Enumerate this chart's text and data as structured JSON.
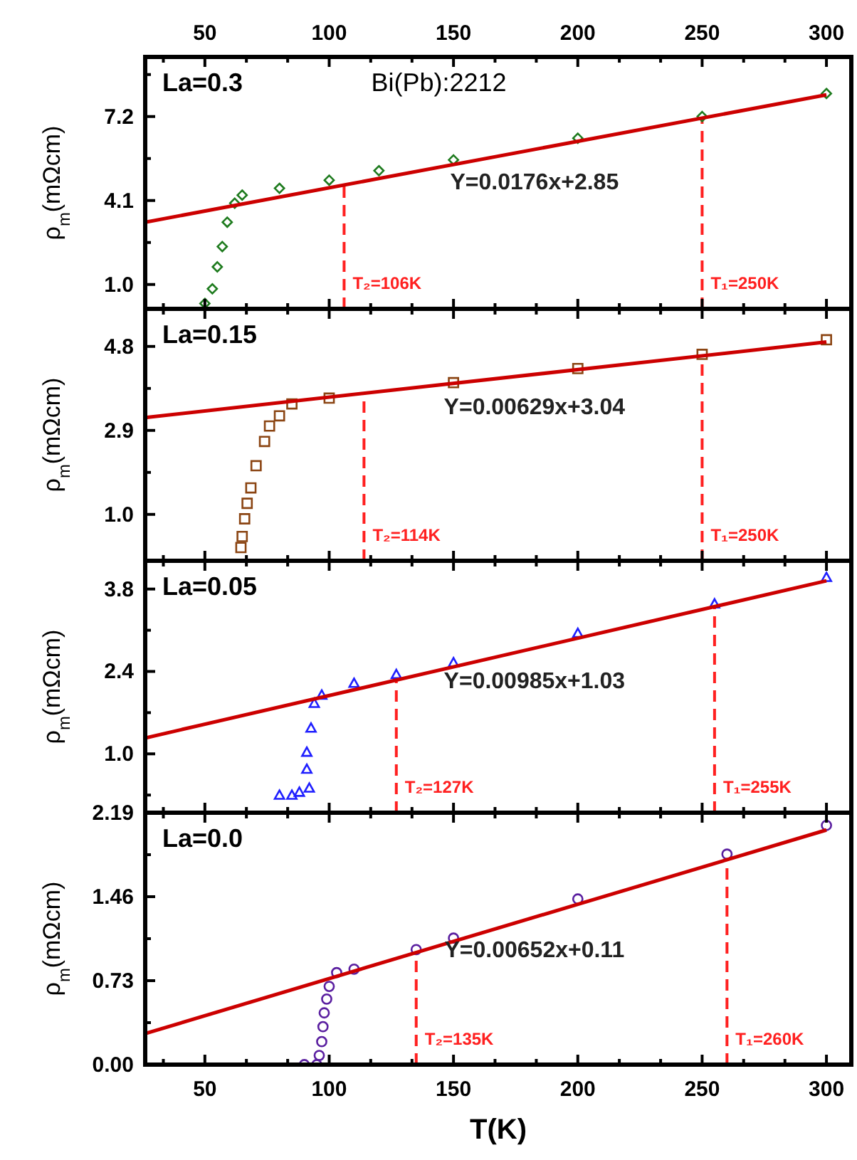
{
  "chart_data": [
    {
      "type": "scatter",
      "title": "La=0.3",
      "ylabel": "ρ$_{m}$(mΩcm)",
      "annotations": [
        "Bi(Pb):2212"
      ],
      "tick_labels": "y",
      "xlim": [
        26,
        310
      ],
      "xticks": [
        {
          "value": 33.3,
          "label": null
        },
        50,
        {
          "value": 66.7,
          "label": null
        },
        {
          "value": 83.3,
          "label": null
        },
        100,
        {
          "value": 116.7,
          "label": null
        },
        {
          "value": 133.3,
          "label": null
        },
        150,
        {
          "value": 166.7,
          "label": null
        },
        {
          "value": 183.3,
          "label": null
        },
        200,
        {
          "value": 216.7,
          "label": null
        },
        {
          "value": 233.3,
          "label": null
        },
        250,
        {
          "value": 266.7,
          "label": null
        },
        {
          "value": 283.3,
          "label": null
        },
        300
      ],
      "x2lim": [
        26,
        310
      ],
      "x2ticks": [
        {
          "value": 33.3,
          "label": null
        },
        50,
        {
          "value": 66.7,
          "label": null
        },
        {
          "value": 83.3,
          "label": null
        },
        100,
        {
          "value": 116.7,
          "label": null
        },
        {
          "value": 133.3,
          "label": null
        },
        150,
        {
          "value": 166.7,
          "label": null
        },
        {
          "value": 183.3,
          "label": null
        },
        200,
        {
          "value": 216.7,
          "label": null
        },
        {
          "value": 233.3,
          "label": null
        },
        250,
        {
          "value": 266.7,
          "label": null
        },
        {
          "value": 283.3,
          "label": null
        },
        300
      ],
      "ylim": [
        0.1,
        9.4
      ],
      "yticks": [
        {
          "value": 1,
          "label": "1.0"
        },
        {
          "value": 2.55,
          "label": null
        },
        4.1,
        {
          "value": 5.65,
          "label": null
        },
        7.2,
        {
          "value": 8.75,
          "label": null
        }
      ],
      "series": [
        {
          "marker": "diamond",
          "color": "#1e7b1e",
          "x": [
            50,
            53,
            55,
            57,
            59,
            62,
            65,
            80,
            100,
            120,
            150,
            200,
            250,
            300
          ],
          "values": [
            0.3,
            0.84,
            1.65,
            2.4,
            3.3,
            4.0,
            4.3,
            4.55,
            4.85,
            5.2,
            5.6,
            6.4,
            7.2,
            8.05
          ]
        },
        {
          "type": "line",
          "name": "Y=0.0176x+2.85",
          "color": "#cc0000",
          "x": [
            26,
            300
          ],
          "values": [
            3.3,
            8.0
          ]
        }
      ],
      "ref_lines": [
        {
          "axis": "x",
          "value": 106,
          "label": "T₂=106K",
          "color": "#ff2020",
          "line_style": "dashed"
        },
        {
          "axis": "x",
          "value": 250,
          "label": "T₁=250K",
          "color": "#ff2020",
          "line_style": "dashed"
        }
      ]
    },
    {
      "type": "scatter",
      "title": "La=0.15",
      "ylabel": "ρ$_{m}$(mΩcm)",
      "tick_labels": "y",
      "xlim": [
        26,
        310
      ],
      "xticks": [
        {
          "value": 33.3,
          "label": null
        },
        50,
        {
          "value": 66.7,
          "label": null
        },
        {
          "value": 83.3,
          "label": null
        },
        100,
        {
          "value": 116.7,
          "label": null
        },
        {
          "value": 133.3,
          "label": null
        },
        150,
        {
          "value": 166.7,
          "label": null
        },
        {
          "value": 183.3,
          "label": null
        },
        200,
        {
          "value": 216.7,
          "label": null
        },
        {
          "value": 233.3,
          "label": null
        },
        250,
        {
          "value": 266.7,
          "label": null
        },
        {
          "value": 283.3,
          "label": null
        },
        300
      ],
      "ylim": [
        -0.05,
        5.65
      ],
      "yticks": [
        {
          "value": 1,
          "label": "1.0"
        },
        {
          "value": 1.95,
          "label": null
        },
        2.9,
        {
          "value": 3.85,
          "label": null
        },
        4.8
      ],
      "series": [
        {
          "marker": "square",
          "color": "#8b4513",
          "x": [
            64.5,
            65,
            66,
            67,
            68.5,
            70.6,
            74,
            76,
            80,
            85,
            100,
            150,
            200,
            250,
            300
          ],
          "values": [
            0.25,
            0.5,
            0.9,
            1.25,
            1.6,
            2.1,
            2.65,
            3.0,
            3.23,
            3.5,
            3.63,
            3.98,
            4.3,
            4.62,
            4.95
          ]
        },
        {
          "type": "line",
          "name": "Y=0.00629x+3.04",
          "color": "#cc0000",
          "x": [
            26,
            300
          ],
          "values": [
            3.19,
            4.9
          ]
        }
      ],
      "ref_lines": [
        {
          "axis": "x",
          "value": 114,
          "label": "T₂=114K",
          "color": "#ff2020",
          "line_style": "dashed"
        },
        {
          "axis": "x",
          "value": 250,
          "label": "T₁=250K",
          "color": "#ff2020",
          "line_style": "dashed"
        }
      ]
    },
    {
      "type": "scatter",
      "title": "La=0.05",
      "ylabel": "ρ$_{m}$(mΩcm)",
      "tick_labels": "y",
      "xlim": [
        26,
        310
      ],
      "xticks": [
        {
          "value": 33.3,
          "label": null
        },
        50,
        {
          "value": 66.7,
          "label": null
        },
        {
          "value": 83.3,
          "label": null
        },
        100,
        {
          "value": 116.7,
          "label": null
        },
        {
          "value": 133.3,
          "label": null
        },
        150,
        {
          "value": 166.7,
          "label": null
        },
        {
          "value": 183.3,
          "label": null
        },
        200,
        {
          "value": 216.7,
          "label": null
        },
        {
          "value": 233.3,
          "label": null
        },
        250,
        {
          "value": 266.7,
          "label": null
        },
        {
          "value": 283.3,
          "label": null
        },
        300
      ],
      "ylim": [
        0,
        4.28
      ],
      "yticks": [
        {
          "value": 0.3,
          "label": null
        },
        {
          "value": 1,
          "label": "1.0"
        },
        {
          "value": 1.7,
          "label": null
        },
        2.4,
        {
          "value": 3.1,
          "label": null
        },
        3.8
      ],
      "series": [
        {
          "marker": "triangle",
          "color": "#1f1fff",
          "x": [
            80,
            85,
            88,
            92,
            91,
            91,
            92.7,
            94,
            97,
            110,
            127,
            150,
            200,
            255,
            300
          ],
          "values": [
            0.3,
            0.3,
            0.35,
            0.42,
            0.74,
            1.03,
            1.44,
            1.86,
            2.0,
            2.2,
            2.35,
            2.55,
            3.05,
            3.55,
            4.0
          ]
        },
        {
          "type": "line",
          "name": "Y=0.00985x+1.03",
          "color": "#cc0000",
          "x": [
            26,
            300
          ],
          "values": [
            1.27,
            3.94
          ]
        }
      ],
      "ref_lines": [
        {
          "axis": "x",
          "value": 127,
          "label": "T₂=127K",
          "color": "#ff2020",
          "line_style": "dashed"
        },
        {
          "axis": "x",
          "value": 255,
          "label": "T₁=255K",
          "color": "#ff2020",
          "line_style": "dashed"
        }
      ]
    },
    {
      "type": "scatter",
      "title": "La=0.0",
      "ylabel": "ρ$_{m}$(mΩcm)",
      "xlabel": "T(K)",
      "xlim": [
        26,
        310
      ],
      "xticks": [
        {
          "value": 33.3,
          "label": null
        },
        50,
        {
          "value": 66.7,
          "label": null
        },
        {
          "value": 83.3,
          "label": null
        },
        100,
        {
          "value": 116.7,
          "label": null
        },
        {
          "value": 133.3,
          "label": null
        },
        150,
        {
          "value": 166.7,
          "label": null
        },
        {
          "value": 183.3,
          "label": null
        },
        200,
        {
          "value": 216.7,
          "label": null
        },
        {
          "value": 233.3,
          "label": null
        },
        250,
        {
          "value": 266.7,
          "label": null
        },
        {
          "value": 283.3,
          "label": null
        },
        300
      ],
      "ylim": [
        0,
        2.19
      ],
      "yticks": [
        {
          "value": 0,
          "label": "0.00"
        },
        {
          "value": 0.365,
          "label": null
        },
        0.73,
        {
          "value": 1.095,
          "label": null
        },
        1.46,
        {
          "value": 1.825,
          "label": null
        },
        2.19
      ],
      "series": [
        {
          "marker": "circle",
          "color": "#5a1fa0",
          "x": [
            90,
            95,
            96,
            97,
            97.5,
            98,
            99,
            100,
            103,
            110,
            135,
            150,
            200,
            260,
            300
          ],
          "values": [
            0.0,
            0.0,
            0.08,
            0.2,
            0.33,
            0.45,
            0.57,
            0.68,
            0.8,
            0.83,
            1.0,
            1.1,
            1.44,
            1.83,
            2.08
          ]
        },
        {
          "type": "line",
          "name": "Y=0.00652x+0.11",
          "color": "#cc0000",
          "x": [
            26,
            300
          ],
          "values": [
            0.27,
            2.04
          ]
        }
      ],
      "ref_lines": [
        {
          "axis": "x",
          "value": 135,
          "label": "T₂=135K",
          "color": "#ff2020",
          "line_style": "dashed"
        },
        {
          "axis": "x",
          "value": 260,
          "label": "T₁=260K",
          "color": "#ff2020",
          "line_style": "dashed"
        }
      ]
    }
  ]
}
